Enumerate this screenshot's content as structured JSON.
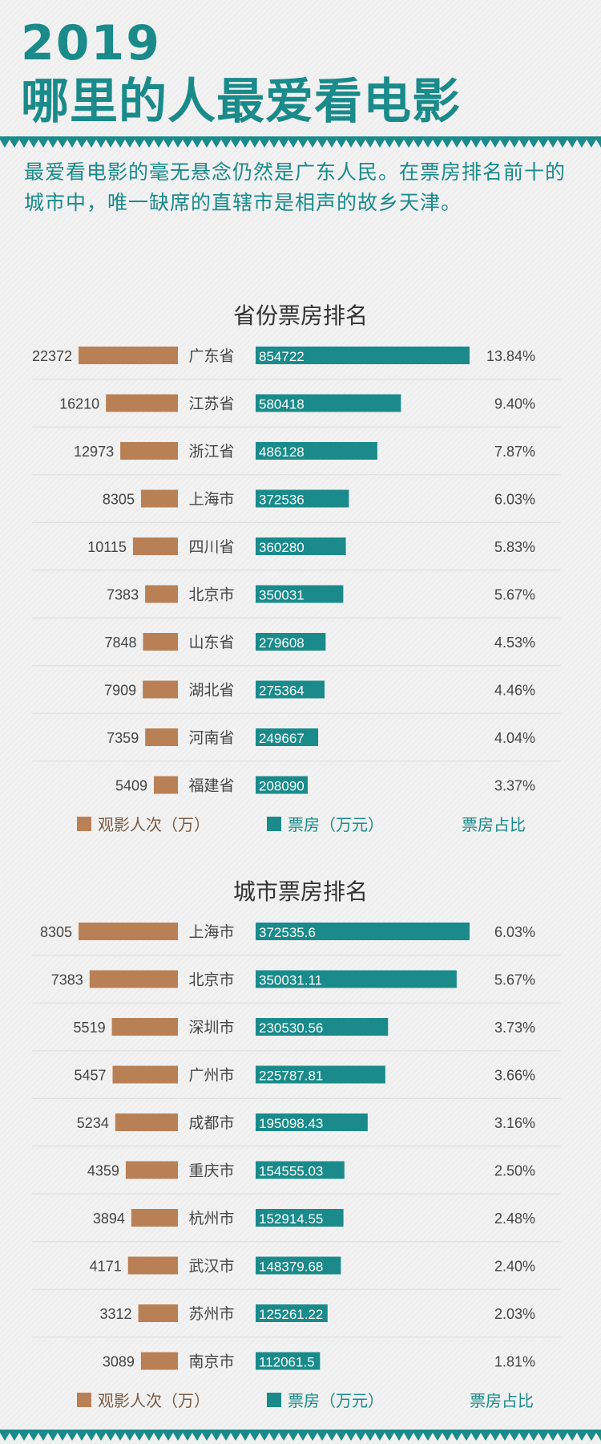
{
  "header": {
    "year": "2019",
    "title": "哪里的人最爱看电影",
    "intro": "最爱看电影的毫无悬念仍然是广东人民。在票房排名前十的城市中，唯一缺席的直辖市是相声的故乡天津。"
  },
  "colors": {
    "teal": "#1a8a8a",
    "orange": "#b98056",
    "text_dark": "#444444"
  },
  "legend": {
    "viewers": "观影人次（万）",
    "box_office": "票房（万元）",
    "share": "票房占比"
  },
  "chart_data": [
    {
      "type": "bar",
      "title": "省份票房排名",
      "categories": [
        "广东省",
        "江苏省",
        "浙江省",
        "上海市",
        "四川省",
        "北京市",
        "山东省",
        "湖北省",
        "河南省",
        "福建省"
      ],
      "series": [
        {
          "name": "观影人次（万）",
          "values": [
            22372,
            16210,
            12973,
            8305,
            10115,
            7383,
            7848,
            7909,
            7359,
            5409
          ]
        },
        {
          "name": "票房（万元）",
          "values": [
            854722,
            580418,
            486128,
            372536,
            360280,
            350031,
            279608,
            275364,
            249667,
            208090
          ]
        },
        {
          "name": "票房占比",
          "values": [
            "13.84%",
            "9.40%",
            "7.87%",
            "6.03%",
            "5.83%",
            "5.67%",
            "4.53%",
            "4.46%",
            "4.04%",
            "3.37%"
          ]
        }
      ],
      "box_labels": [
        "854722",
        "580418",
        "486128",
        "372536",
        "360280",
        "350031",
        "279608",
        "275364",
        "249667",
        "208090"
      ]
    },
    {
      "type": "bar",
      "title": "城市票房排名",
      "categories": [
        "上海市",
        "北京市",
        "深圳市",
        "广州市",
        "成都市",
        "重庆市",
        "杭州市",
        "武汉市",
        "苏州市",
        "南京市"
      ],
      "series": [
        {
          "name": "观影人次（万）",
          "values": [
            8305,
            7383,
            5519,
            5457,
            5234,
            4359,
            3894,
            4171,
            3312,
            3089
          ]
        },
        {
          "name": "票房（万元）",
          "values": [
            372535.6,
            350031.11,
            230530.56,
            225787.81,
            195098.43,
            154555.03,
            152914.55,
            148379.68,
            125261.22,
            112061.5
          ]
        },
        {
          "name": "票房占比",
          "values": [
            "6.03%",
            "5.67%",
            "3.73%",
            "3.66%",
            "3.16%",
            "2.50%",
            "2.48%",
            "2.40%",
            "2.03%",
            "1.81%"
          ]
        }
      ],
      "box_labels": [
        "372535.6",
        "350031.11",
        "230530.56",
        "225787.81",
        "195098.43",
        "154555.03",
        "152914.55",
        "148379.68",
        "125261.22",
        "112061.5"
      ]
    }
  ]
}
